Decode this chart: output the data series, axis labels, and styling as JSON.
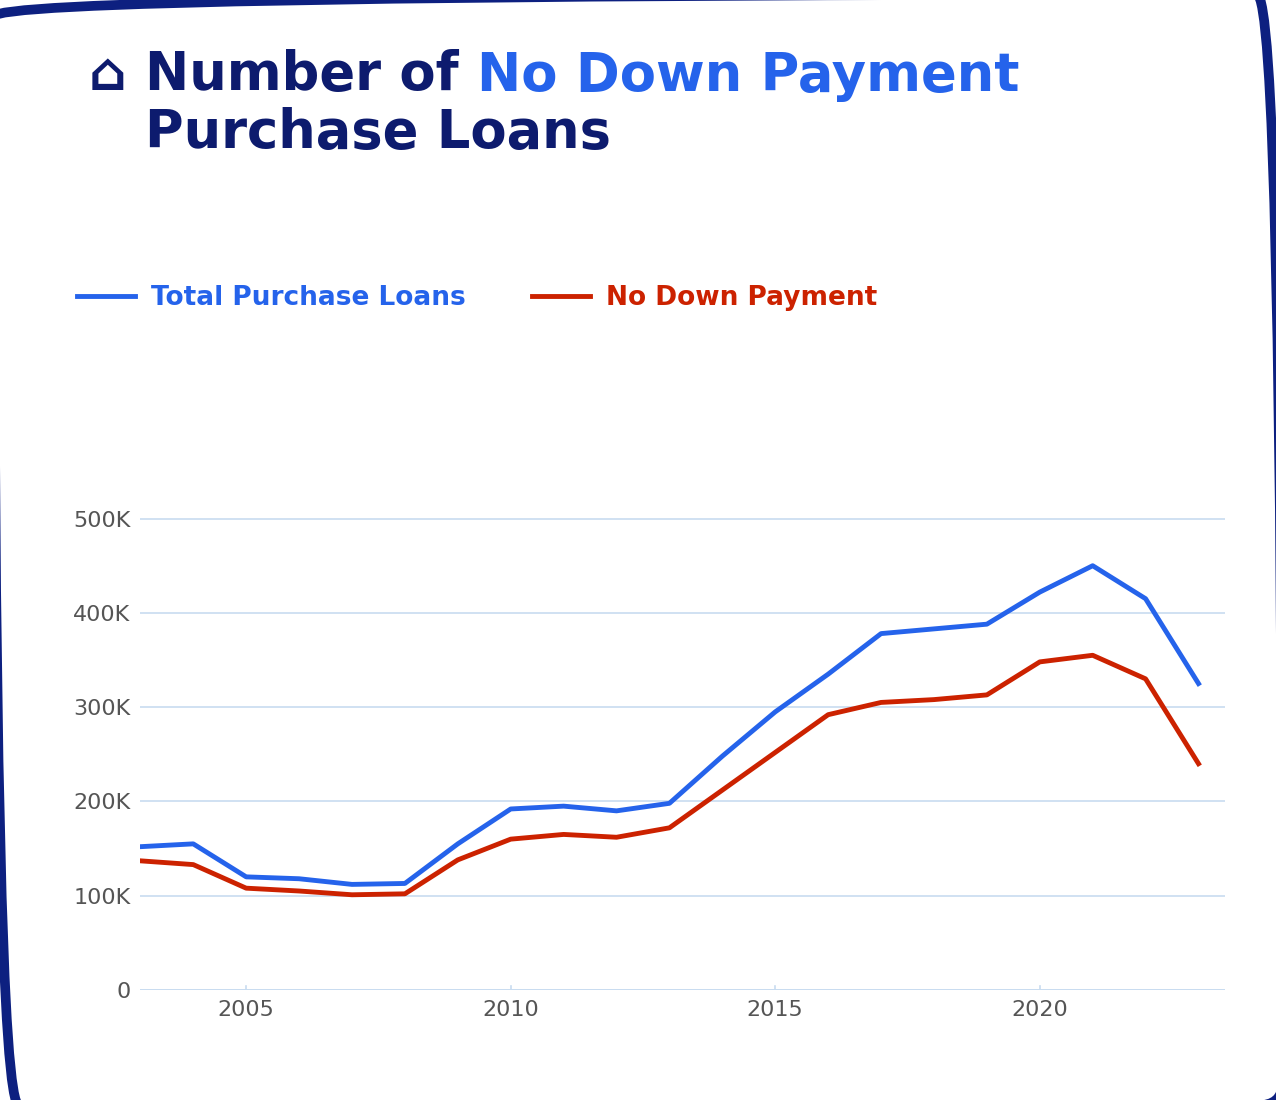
{
  "title_color1": "#0d1b6e",
  "title_color2": "#2563eb",
  "legend_label1": "Total Purchase Loans",
  "legend_label2": "No Down Payment",
  "line_color1": "#2563eb",
  "line_color2": "#cc2200",
  "background_color": "#ffffff",
  "border_color": "#0d2080",
  "grid_color": "#c8dcf0",
  "years": [
    2003,
    2004,
    2005,
    2006,
    2007,
    2008,
    2009,
    2010,
    2011,
    2012,
    2013,
    2014,
    2015,
    2016,
    2017,
    2018,
    2019,
    2020,
    2021,
    2022,
    2023
  ],
  "total_purchase": [
    152000,
    155000,
    120000,
    118000,
    112000,
    113000,
    155000,
    192000,
    195000,
    190000,
    198000,
    248000,
    295000,
    335000,
    378000,
    383000,
    388000,
    422000,
    450000,
    415000,
    325000
  ],
  "no_down_payment": [
    137000,
    133000,
    108000,
    105000,
    101000,
    102000,
    138000,
    160000,
    165000,
    162000,
    172000,
    212000,
    252000,
    292000,
    305000,
    308000,
    313000,
    348000,
    355000,
    330000,
    240000
  ],
  "yticks": [
    0,
    100000,
    200000,
    300000,
    400000,
    500000
  ],
  "ytick_labels": [
    "0",
    "100K",
    "200K",
    "300K",
    "400K",
    "500K"
  ],
  "xticks": [
    2005,
    2010,
    2015,
    2020
  ],
  "ylim": [
    0,
    560000
  ],
  "xlim": [
    2003,
    2023.5
  ],
  "tick_color": "#555555",
  "axis_label_fontsize": 16,
  "legend_fontsize": 19,
  "title_fontsize": 38,
  "line_width": 3.5,
  "icon_text": "⌂",
  "title_text1": "Number of ",
  "title_text2": "No Down Payment",
  "title_text3": "Purchase Loans"
}
